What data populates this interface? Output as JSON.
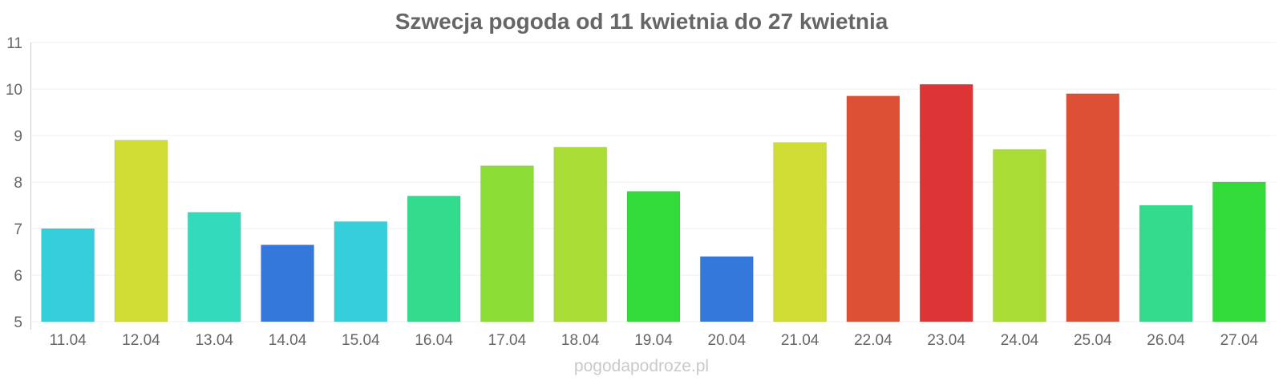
{
  "chart_data": {
    "type": "bar",
    "title": "Szwecja pogoda od 11 kwietnia do 27 kwietnia",
    "xlabel": "",
    "ylabel": "",
    "ylim": [
      5,
      11
    ],
    "yticks": [
      5,
      6,
      7,
      8,
      9,
      10,
      11
    ],
    "grid": true,
    "categories": [
      "11.04",
      "12.04",
      "13.04",
      "14.04",
      "15.04",
      "16.04",
      "17.04",
      "18.04",
      "19.04",
      "20.04",
      "21.04",
      "22.04",
      "23.04",
      "24.04",
      "25.04",
      "26.04",
      "27.04"
    ],
    "values": [
      7.0,
      8.9,
      7.35,
      6.65,
      7.15,
      7.7,
      8.35,
      8.75,
      7.8,
      6.4,
      8.85,
      9.85,
      10.1,
      8.7,
      9.9,
      7.5,
      8.0
    ],
    "colors": [
      "#35cfdb",
      "#cfdd35",
      "#33dbbc",
      "#3478db",
      "#35cfdb",
      "#33db8c",
      "#8bdd35",
      "#a9dd35",
      "#33db38",
      "#3478db",
      "#cfdd35",
      "#dd5035",
      "#dd3535",
      "#a9dd35",
      "#dd5035",
      "#33db8c",
      "#33db38"
    ]
  },
  "watermark": "pogodapodroze.pl"
}
